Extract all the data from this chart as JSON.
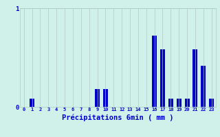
{
  "title": "",
  "xlabel": "Précipitations 6min ( mm )",
  "hours": [
    0,
    1,
    2,
    3,
    4,
    5,
    6,
    7,
    8,
    9,
    10,
    11,
    12,
    13,
    14,
    15,
    16,
    17,
    18,
    19,
    20,
    21,
    22,
    23
  ],
  "values": [
    0.0,
    0.08,
    0.0,
    0.0,
    0.0,
    0.0,
    0.0,
    0.0,
    0.0,
    0.18,
    0.18,
    0.0,
    0.0,
    0.0,
    0.0,
    0.0,
    0.72,
    0.58,
    0.08,
    0.08,
    0.08,
    0.58,
    0.42,
    0.08
  ],
  "ylim": [
    0,
    1.0
  ],
  "yticks": [
    0,
    1
  ],
  "bar_color": "#0000cc",
  "bg_color": "#d0f0ea",
  "grid_color": "#b0c8c4",
  "text_color": "#0000cc",
  "xlabel_fontsize": 7.5
}
